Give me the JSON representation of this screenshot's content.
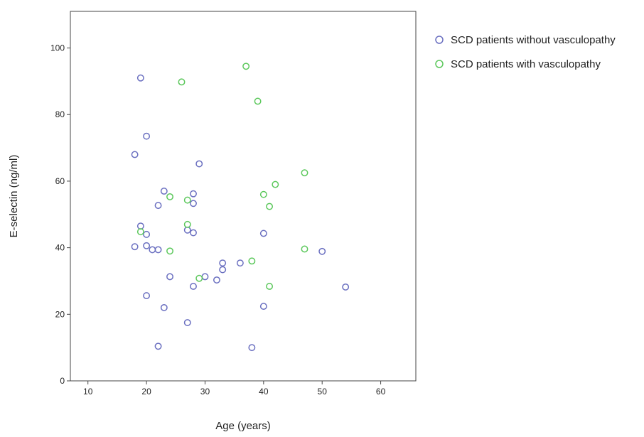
{
  "chart_data": {
    "type": "scatter",
    "xlabel": "Age (years)",
    "ylabel": "E-selectin (ng/ml)",
    "xlim": [
      7,
      66
    ],
    "ylim": [
      0,
      111
    ],
    "xticks": [
      10,
      20,
      30,
      40,
      50,
      60
    ],
    "yticks": [
      0,
      20,
      40,
      60,
      80,
      100
    ],
    "grid": false,
    "legend_position": "top-right, outside plot",
    "series": [
      {
        "name": "SCD patients without vasculopathy",
        "color": "#6a6fc0",
        "marker": "open-circle",
        "points": [
          [
            18,
            68
          ],
          [
            18,
            40.3
          ],
          [
            19,
            91
          ],
          [
            19,
            46.5
          ],
          [
            20,
            73.5
          ],
          [
            20,
            44
          ],
          [
            20,
            40.6
          ],
          [
            20,
            25.6
          ],
          [
            21,
            39.4
          ],
          [
            22,
            52.7
          ],
          [
            22,
            39.4
          ],
          [
            22,
            10.4
          ],
          [
            23,
            57
          ],
          [
            23,
            22
          ],
          [
            24,
            31.3
          ],
          [
            27,
            45.3
          ],
          [
            27,
            17.5
          ],
          [
            28,
            56.2
          ],
          [
            28,
            53.3
          ],
          [
            28,
            44.5
          ],
          [
            28,
            28.4
          ],
          [
            29,
            65.2
          ],
          [
            30,
            31.3
          ],
          [
            32,
            30.3
          ],
          [
            33,
            35.4
          ],
          [
            33,
            33.4
          ],
          [
            36,
            35.4
          ],
          [
            38,
            10
          ],
          [
            40,
            44.3
          ],
          [
            40,
            22.4
          ],
          [
            50,
            38.9
          ],
          [
            54,
            28.2
          ]
        ]
      },
      {
        "name": "SCD patients with vasculopathy",
        "color": "#5cc85c",
        "marker": "open-circle",
        "points": [
          [
            19,
            44.8
          ],
          [
            24,
            55.3
          ],
          [
            24,
            39
          ],
          [
            26,
            89.8
          ],
          [
            27,
            54.3
          ],
          [
            27,
            47
          ],
          [
            29,
            30.8
          ],
          [
            37,
            94.5
          ],
          [
            38,
            36
          ],
          [
            39,
            84
          ],
          [
            40,
            56
          ],
          [
            41,
            52.4
          ],
          [
            41,
            28.4
          ],
          [
            42,
            59
          ],
          [
            47,
            62.5
          ],
          [
            47,
            39.6
          ]
        ]
      }
    ]
  }
}
